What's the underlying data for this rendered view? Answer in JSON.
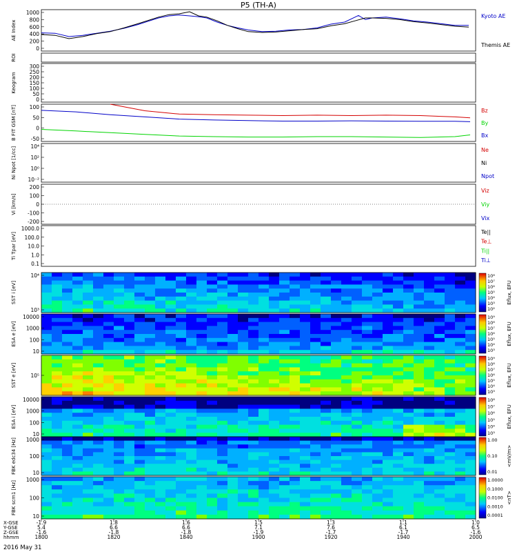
{
  "title": "P5 (TH-A)",
  "date_label": "2016 May 31",
  "colors": {
    "red": "#d40000",
    "green": "#00d400",
    "blue": "#0000c8",
    "black": "#000000"
  },
  "chart_data": [
    {
      "id": "ae",
      "type": "line",
      "ylabel": "AE Index",
      "yticks": [
        1000,
        800,
        600,
        400,
        200,
        0
      ],
      "ylim": [
        0,
        1000
      ],
      "legend": [
        "Kyoto AE",
        "Themis AE"
      ],
      "series": [
        {
          "name": "Kyoto AE",
          "color": "blue",
          "x": [
            0,
            20,
            40,
            60,
            80,
            100,
            120,
            140,
            155,
            170,
            185,
            200,
            215,
            228,
            240,
            255,
            270,
            285,
            300,
            320,
            340,
            360,
            380,
            400,
            420,
            440,
            460,
            470,
            480,
            500,
            520,
            540,
            560,
            580,
            600,
            620
          ],
          "y": [
            440,
            430,
            350,
            380,
            430,
            480,
            550,
            640,
            720,
            800,
            850,
            870,
            850,
            830,
            800,
            700,
            620,
            560,
            510,
            470,
            480,
            510,
            520,
            560,
            650,
            700,
            860,
            760,
            800,
            820,
            780,
            730,
            700,
            660,
            620,
            620
          ]
        },
        {
          "name": "Themis AE",
          "color": "black",
          "x": [
            0,
            20,
            40,
            60,
            80,
            100,
            120,
            140,
            155,
            170,
            185,
            200,
            215,
            228,
            240,
            255,
            270,
            285,
            300,
            320,
            340,
            360,
            380,
            400,
            420,
            440,
            455,
            470,
            480,
            500,
            520,
            540,
            560,
            580,
            600,
            620
          ],
          "y": [
            400,
            380,
            300,
            350,
            420,
            470,
            560,
            660,
            740,
            820,
            880,
            900,
            950,
            850,
            820,
            730,
            620,
            540,
            470,
            450,
            460,
            490,
            520,
            540,
            610,
            660,
            730,
            800,
            800,
            790,
            760,
            710,
            680,
            640,
            600,
            580
          ]
        }
      ]
    },
    {
      "id": "roi",
      "type": "line",
      "ylabel": "ROI"
    },
    {
      "id": "keogram",
      "type": "line",
      "ylabel": "Keogram",
      "yticks": [
        300,
        250,
        200,
        150,
        100,
        50,
        0
      ],
      "ylim": [
        0,
        300
      ]
    },
    {
      "id": "bfield",
      "type": "line",
      "ylabel": "B FIT GSM [nT]",
      "yticks": [
        100,
        50,
        0,
        -50
      ],
      "ylim": [
        -60,
        110
      ],
      "legend": [
        "Bz",
        "By",
        "Bx"
      ],
      "series": [
        {
          "name": "Bz",
          "color": "red",
          "x": [
            100,
            150,
            200,
            250,
            300,
            350,
            400,
            450,
            500,
            550,
            600,
            622
          ],
          "y": [
            110,
            80,
            65,
            62,
            60,
            58,
            60,
            58,
            60,
            58,
            52,
            48
          ]
        },
        {
          "name": "By",
          "color": "blue",
          "x": [
            0,
            50,
            100,
            150,
            200,
            250,
            300,
            350,
            400,
            450,
            500,
            550,
            600,
            622
          ],
          "y": [
            82,
            75,
            62,
            52,
            42,
            38,
            35,
            33,
            33,
            34,
            33,
            32,
            32,
            30
          ]
        },
        {
          "name": "Bx",
          "color": "green",
          "x": [
            0,
            50,
            100,
            150,
            200,
            250,
            300,
            350,
            400,
            450,
            500,
            550,
            600,
            622
          ],
          "y": [
            -5,
            -12,
            -20,
            -28,
            -35,
            -38,
            -40,
            -40,
            -38,
            -38,
            -40,
            -42,
            -38,
            -30
          ]
        }
      ]
    },
    {
      "id": "density",
      "type": "line",
      "ylabel": "Ni Npot [1/cc]",
      "yticks": [
        "10⁴",
        "10²",
        "10⁰",
        "10⁻²"
      ],
      "legend": [
        "Ne",
        "Ni",
        "Npot"
      ]
    },
    {
      "id": "velocity",
      "type": "line",
      "ylabel": "Vi [km/s]",
      "yticks": [
        200,
        100,
        0,
        -100,
        -200
      ],
      "ylim": [
        -200,
        200
      ],
      "legend": [
        "Viz",
        "Viy",
        "Vix"
      ]
    },
    {
      "id": "temperature",
      "type": "line",
      "ylabel": "Ti Tpar [eV]",
      "yticks": [
        "1000.0",
        "100.0",
        "10.0",
        "1.0",
        "0.1"
      ],
      "legend": [
        "Te||",
        "Te⊥",
        "Ti||",
        "Ti⊥"
      ]
    },
    {
      "id": "spec_sst_i",
      "type": "heatmap",
      "ylabel": "SST i [eV]",
      "yticks": [
        "10⁴",
        "10³"
      ],
      "zlabel": "Eflux, EFU",
      "zticks": [
        "10⁸",
        "10⁷",
        "10⁶",
        "10⁵",
        "10⁴",
        "10³",
        "10²"
      ]
    },
    {
      "id": "spec_esa_e",
      "type": "heatmap",
      "ylabel": "ESA e [eV]",
      "yticks": [
        "10000",
        "1000",
        "100",
        "10"
      ],
      "zlabel": "Eflux, EFU",
      "zticks": [
        "10⁹",
        "10⁸",
        "10⁷",
        "10⁶",
        "10⁵",
        "10⁴",
        "10³"
      ]
    },
    {
      "id": "spec_sst_e",
      "type": "heatmap",
      "ylabel": "SST e [eV]",
      "yticks": [
        "10⁵"
      ],
      "zlabel": "Eflux, EFU",
      "zticks": [
        "10⁹",
        "10⁸",
        "10⁷",
        "10⁶",
        "10⁵",
        "10⁴",
        "10³"
      ]
    },
    {
      "id": "spec_esa_i",
      "type": "heatmap",
      "ylabel": "ESA i [eV]",
      "yticks": [
        "10000",
        "1000",
        "100",
        "10"
      ],
      "zlabel": "Eflux, EFU",
      "zticks": [
        "10⁸",
        "10⁷",
        "10⁶",
        "10⁵",
        "10⁴",
        "10³"
      ]
    },
    {
      "id": "fbk_e",
      "type": "heatmap",
      "ylabel": "FBK edc34 [Hz]",
      "yticks": [
        "1000",
        "100",
        "10"
      ],
      "zlabel": "<mV/m>",
      "zticks": [
        "1.00",
        "0.10",
        "0.01"
      ]
    },
    {
      "id": "fbk_b",
      "type": "heatmap",
      "ylabel": "FBK scm1 [Hz]",
      "yticks": [
        "1000",
        "100",
        "10"
      ],
      "zlabel": "<nT>",
      "zticks": [
        "1.0000",
        "0.1000",
        "0.0100",
        "0.0010",
        "0.0001"
      ]
    }
  ],
  "x_axis": {
    "row_labels": [
      "X-GSE",
      "Y-GSE",
      "Z-GSE",
      "hhmm"
    ],
    "columns": [
      [
        "-1.9",
        "5.4",
        "-1.6",
        "1800"
      ],
      [
        "1.8",
        "6.6",
        "-1.8",
        "1820"
      ],
      [
        "1.6",
        "6.6",
        "-1.8",
        "1840"
      ],
      [
        "1.5",
        "7.1",
        "-1.9",
        "1900"
      ],
      [
        "1.3",
        "7.6",
        "-1.7",
        "1920"
      ],
      [
        "1.1",
        "6.1",
        "-1.7",
        "1940"
      ],
      [
        "1.0",
        "6.5",
        "-1.6",
        "2000"
      ]
    ]
  }
}
